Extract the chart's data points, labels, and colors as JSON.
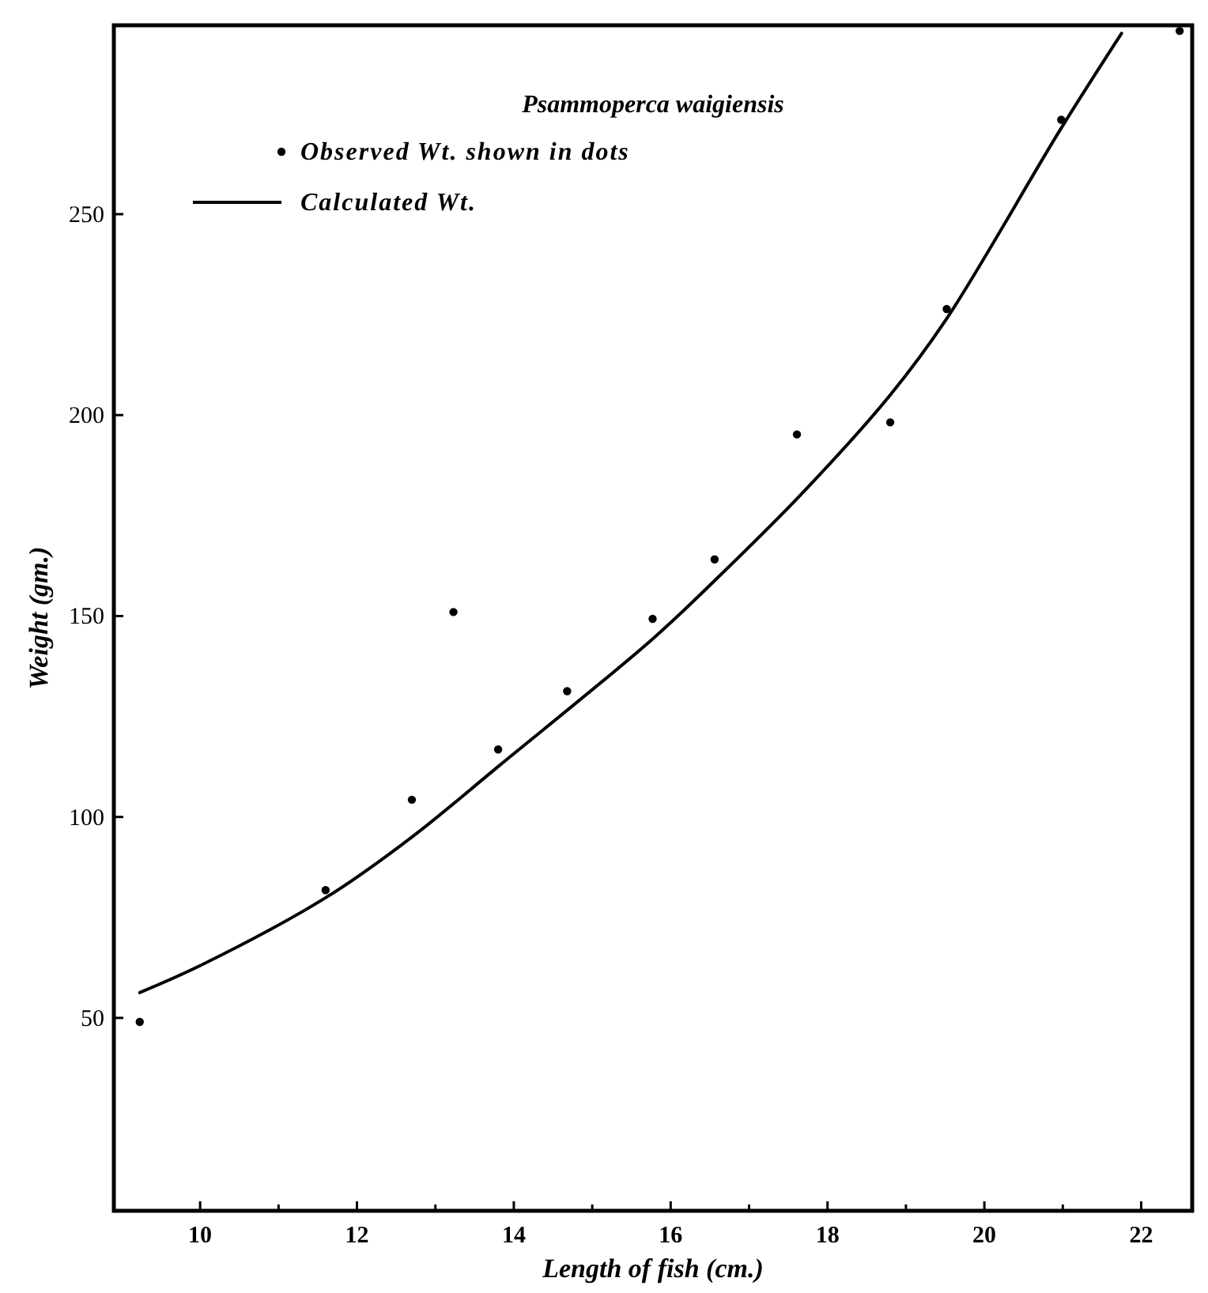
{
  "chart_data": {
    "type": "scatter",
    "title": "Psammoperca waigiensis",
    "xlabel": "Length of fish (cm.)",
    "ylabel": "Weight (gm.)",
    "xlim": [
      8.9,
      22.65
    ],
    "ylim": [
      2,
      297
    ],
    "xticks": [
      10,
      {
        "value": 11,
        "label": null
      },
      12,
      {
        "value": 13,
        "label": null
      },
      14,
      {
        "value": 15,
        "label": null
      },
      16,
      {
        "value": 17,
        "label": null
      },
      18,
      {
        "value": 19,
        "label": null
      },
      20,
      {
        "value": 21,
        "label": null
      },
      22
    ],
    "yticks": [
      50,
      100,
      150,
      200,
      250
    ],
    "grid": false,
    "legend": "top left",
    "marker": "circle",
    "series": [
      {
        "name": "Observed Wt. shown in dots",
        "color": "#000000",
        "x": [
          9.23,
          11.6,
          12.7,
          13.23,
          13.8,
          14.68,
          15.77,
          16.56,
          17.61,
          18.8,
          19.52,
          20.98,
          22.49
        ],
        "values": [
          49,
          81.8,
          104.3,
          151,
          116.8,
          131.3,
          149.3,
          164.1,
          195.2,
          198.2,
          226.4,
          273.5,
          295.6
        ]
      },
      {
        "name": "Calculated Wt.",
        "type": "line",
        "color": "#000000",
        "marker": "none",
        "line_style": "solid",
        "x": [
          9.23,
          10,
          11.6,
          12.7,
          13.81,
          15.77,
          16.56,
          17.66,
          18.8,
          19.52,
          20.98,
          21.75
        ],
        "values": [
          56.3,
          63,
          79.9,
          95,
          112.7,
          144.3,
          158.8,
          180.2,
          205,
          224,
          271.4,
          295
        ]
      }
    ]
  }
}
